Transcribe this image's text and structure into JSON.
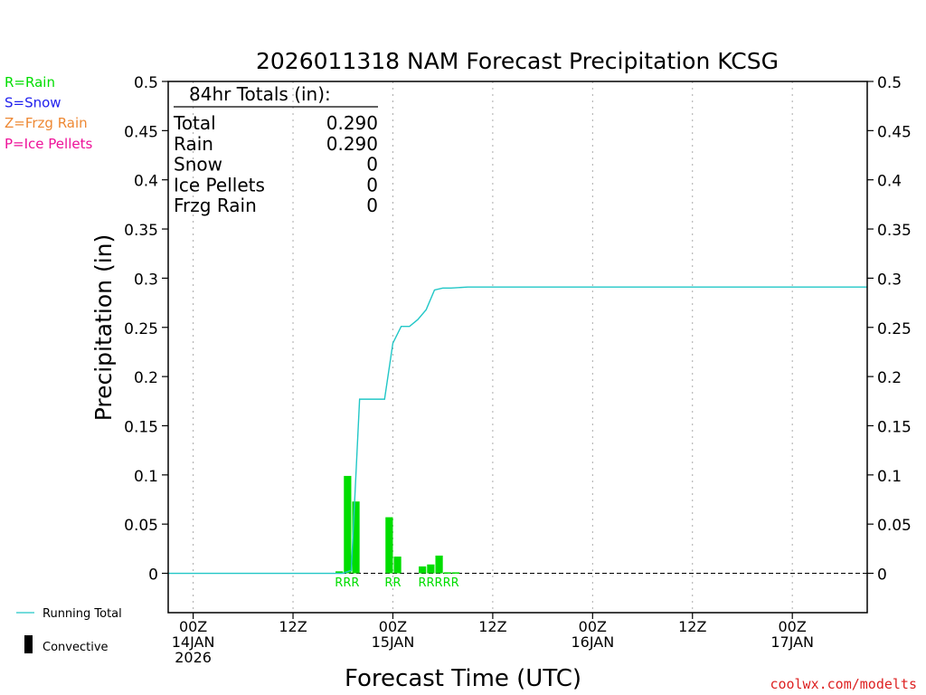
{
  "chart_data": {
    "type": "bar",
    "title": "2026011318 NAM Forecast Precipitation KCSG",
    "xlabel": "Forecast Time (UTC)",
    "ylabel": "Precipitation (in)",
    "ylim": [
      -0.04,
      0.5
    ],
    "xlim": [
      -3,
      81
    ],
    "yticks": [
      0,
      0.05,
      0.1,
      0.15,
      0.2,
      0.25,
      0.3,
      0.35,
      0.4,
      0.45,
      0.5
    ],
    "ytick_labels": [
      "0",
      "0.05",
      "0.1",
      "0.15",
      "0.2",
      "0.25",
      "0.3",
      "0.35",
      "0.4",
      "0.45",
      "0.5"
    ],
    "xticks": [
      {
        "x": 0,
        "lines": [
          "00Z",
          "14JAN",
          "2026"
        ]
      },
      {
        "x": 12,
        "lines": [
          "12Z"
        ]
      },
      {
        "x": 24,
        "lines": [
          "00Z",
          "15JAN"
        ]
      },
      {
        "x": 36,
        "lines": [
          "12Z"
        ]
      },
      {
        "x": 48,
        "lines": [
          "00Z",
          "16JAN"
        ]
      },
      {
        "x": 60,
        "lines": [
          "12Z"
        ]
      },
      {
        "x": 72,
        "lines": [
          "00Z",
          "17JAN"
        ]
      }
    ],
    "grid": "vertical dotted at 6-hourly ticks",
    "bars": [
      {
        "x": 18,
        "value": 0.002,
        "type": "R"
      },
      {
        "x": 19,
        "value": 0.099,
        "type": "R"
      },
      {
        "x": 20,
        "value": 0.073,
        "type": "R"
      },
      {
        "x": 24,
        "value": 0.057,
        "type": "R"
      },
      {
        "x": 25,
        "value": 0.017,
        "type": "R"
      },
      {
        "x": 28,
        "value": 0.007,
        "type": "R"
      },
      {
        "x": 29,
        "value": 0.009,
        "type": "R"
      },
      {
        "x": 30,
        "value": 0.018,
        "type": "R"
      },
      {
        "x": 31,
        "value": 0.001,
        "type": "R"
      },
      {
        "x": 32,
        "value": 0.001,
        "type": "R"
      }
    ],
    "bar_color": "#00dd00",
    "running_total": {
      "name": "Running Total",
      "color": "#22c7c7",
      "x": [
        -5,
        18,
        19,
        20,
        23,
        24,
        25,
        26,
        27,
        28,
        29,
        30,
        31,
        33,
        81
      ],
      "y": [
        0,
        0,
        0.003,
        0.177,
        0.177,
        0.234,
        0.251,
        0.251,
        0.258,
        0.268,
        0.288,
        0.29,
        0.29,
        0.291,
        0.291
      ]
    },
    "precip_type_labels": [
      {
        "x": 19,
        "text": "RRR"
      },
      {
        "x": 24.5,
        "text": "RR"
      },
      {
        "x": 30,
        "text": "RRRRR"
      }
    ],
    "totals_box": {
      "heading": "84hr Totals (in):",
      "rows": [
        {
          "label": "Total",
          "value": "0.290"
        },
        {
          "label": "Rain",
          "value": "0.290"
        },
        {
          "label": "Snow",
          "value": "0"
        },
        {
          "label": "Ice Pellets",
          "value": "0"
        },
        {
          "label": "Frzg Rain",
          "value": "0"
        }
      ]
    },
    "type_legend": [
      {
        "text": "R=Rain",
        "color": "#00dd00"
      },
      {
        "text": "S=Snow",
        "color": "#2222ee"
      },
      {
        "text": "Z=Frzg Rain",
        "color": "#ee8833"
      },
      {
        "text": "P=Ice Pellets",
        "color": "#ee1199"
      }
    ],
    "bottom_legend": {
      "running_total_label": "Running Total",
      "convective_label": "Convective"
    },
    "credit": "coolwx.com/modelts",
    "credit_color": "#dd2222"
  }
}
